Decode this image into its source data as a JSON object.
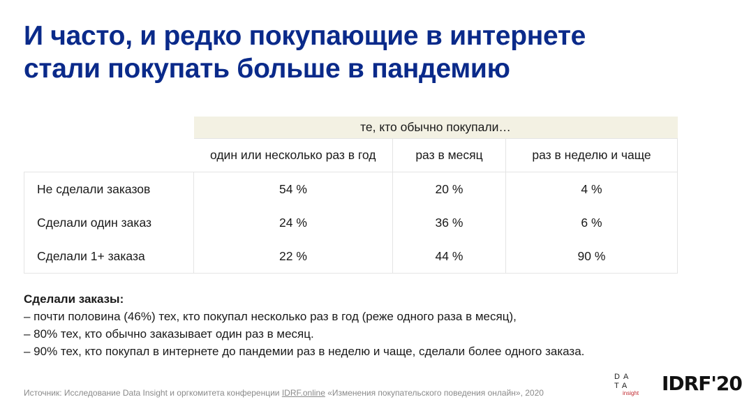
{
  "title_lines": [
    "И часто, и редко покупающие в интернете",
    "стали покупать больше в пандемию"
  ],
  "table": {
    "group_header": "те, кто обычно покупали…",
    "columns": [
      "один или несколько раз в год",
      "раз в месяц",
      "раз в неделю и чаще"
    ],
    "rows": [
      {
        "label": "Не сделали заказов",
        "values": [
          "54 %",
          "20 %",
          "4 %"
        ]
      },
      {
        "label": "Сделали один заказ",
        "values": [
          "24 %",
          "36 %",
          "6 %"
        ]
      },
      {
        "label": "Сделали 1+ заказа",
        "values": [
          "22 %",
          "44 %",
          "90 %"
        ]
      }
    ]
  },
  "summary": {
    "heading": "Сделали заказы:",
    "lines": [
      "– почти половина (46%) тех, кто покупал несколько раз в год (реже одного раза в месяц),",
      "– 80% тех, кто обычно заказывает один раз в месяц.",
      "– 90% тех, кто покупал в интернете до пандемии раз в неделю и чаще, сделали более одного заказа."
    ]
  },
  "footer": {
    "prefix": "Источник: Исследование Data Insight и оргкомитета конференции ",
    "link": "IDRF.online",
    "suffix": " «Изменения покупательского поведения онлайн», 2020"
  },
  "logos": {
    "data_insight_row1": "DA",
    "data_insight_row2": "TA",
    "data_insight_row3": "insight",
    "idrf": "IDRF'20"
  }
}
